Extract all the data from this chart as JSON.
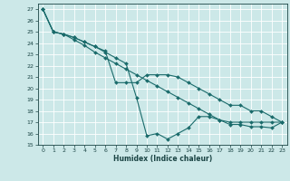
{
  "xlabel": "Humidex (Indice chaleur)",
  "bg_color": "#cce8e8",
  "grid_color": "#ffffff",
  "line_color": "#1a6b6b",
  "xlim": [
    -0.5,
    23.5
  ],
  "ylim": [
    15,
    27.5
  ],
  "yticks": [
    15,
    16,
    17,
    18,
    19,
    20,
    21,
    22,
    23,
    24,
    25,
    26,
    27
  ],
  "xticks": [
    0,
    1,
    2,
    3,
    4,
    5,
    6,
    7,
    8,
    9,
    10,
    11,
    12,
    13,
    14,
    15,
    16,
    17,
    18,
    19,
    20,
    21,
    22,
    23
  ],
  "line1_x": [
    0,
    1,
    2,
    3,
    4,
    5,
    6,
    7,
    8,
    9,
    10,
    11,
    12,
    13,
    14,
    15,
    16,
    17,
    18,
    19,
    20,
    21,
    22,
    23
  ],
  "line1_y": [
    27,
    25,
    24.8,
    24.5,
    24.1,
    23.7,
    23.3,
    20.5,
    20.5,
    20.5,
    21.2,
    21.2,
    21.2,
    21.0,
    20.5,
    20.0,
    19.5,
    19.0,
    18.5,
    18.5,
    18.0,
    18.0,
    17.5,
    17.0
  ],
  "line2_x": [
    0,
    1,
    2,
    3,
    4,
    5,
    6,
    7,
    8,
    9,
    10,
    11,
    12,
    13,
    14,
    15,
    16,
    17,
    18,
    19,
    20,
    21,
    22,
    23
  ],
  "line2_y": [
    27,
    25,
    24.8,
    24.5,
    24.1,
    23.7,
    23.2,
    22.7,
    22.2,
    19.2,
    15.8,
    16.0,
    15.5,
    16.0,
    16.5,
    17.5,
    17.5,
    17.2,
    17.0,
    17.0,
    17.0,
    17.0,
    17.0,
    17.0
  ],
  "line3_x": [
    0,
    1,
    2,
    3,
    4,
    5,
    6,
    7,
    8,
    9,
    10,
    11,
    12,
    13,
    14,
    15,
    16,
    17,
    18,
    19,
    20,
    21,
    22,
    23
  ],
  "line3_y": [
    27,
    25,
    24.8,
    24.3,
    23.8,
    23.2,
    22.7,
    22.2,
    21.7,
    21.2,
    20.7,
    20.2,
    19.7,
    19.2,
    18.7,
    18.2,
    17.7,
    17.2,
    16.8,
    16.8,
    16.6,
    16.6,
    16.5,
    17.0
  ]
}
